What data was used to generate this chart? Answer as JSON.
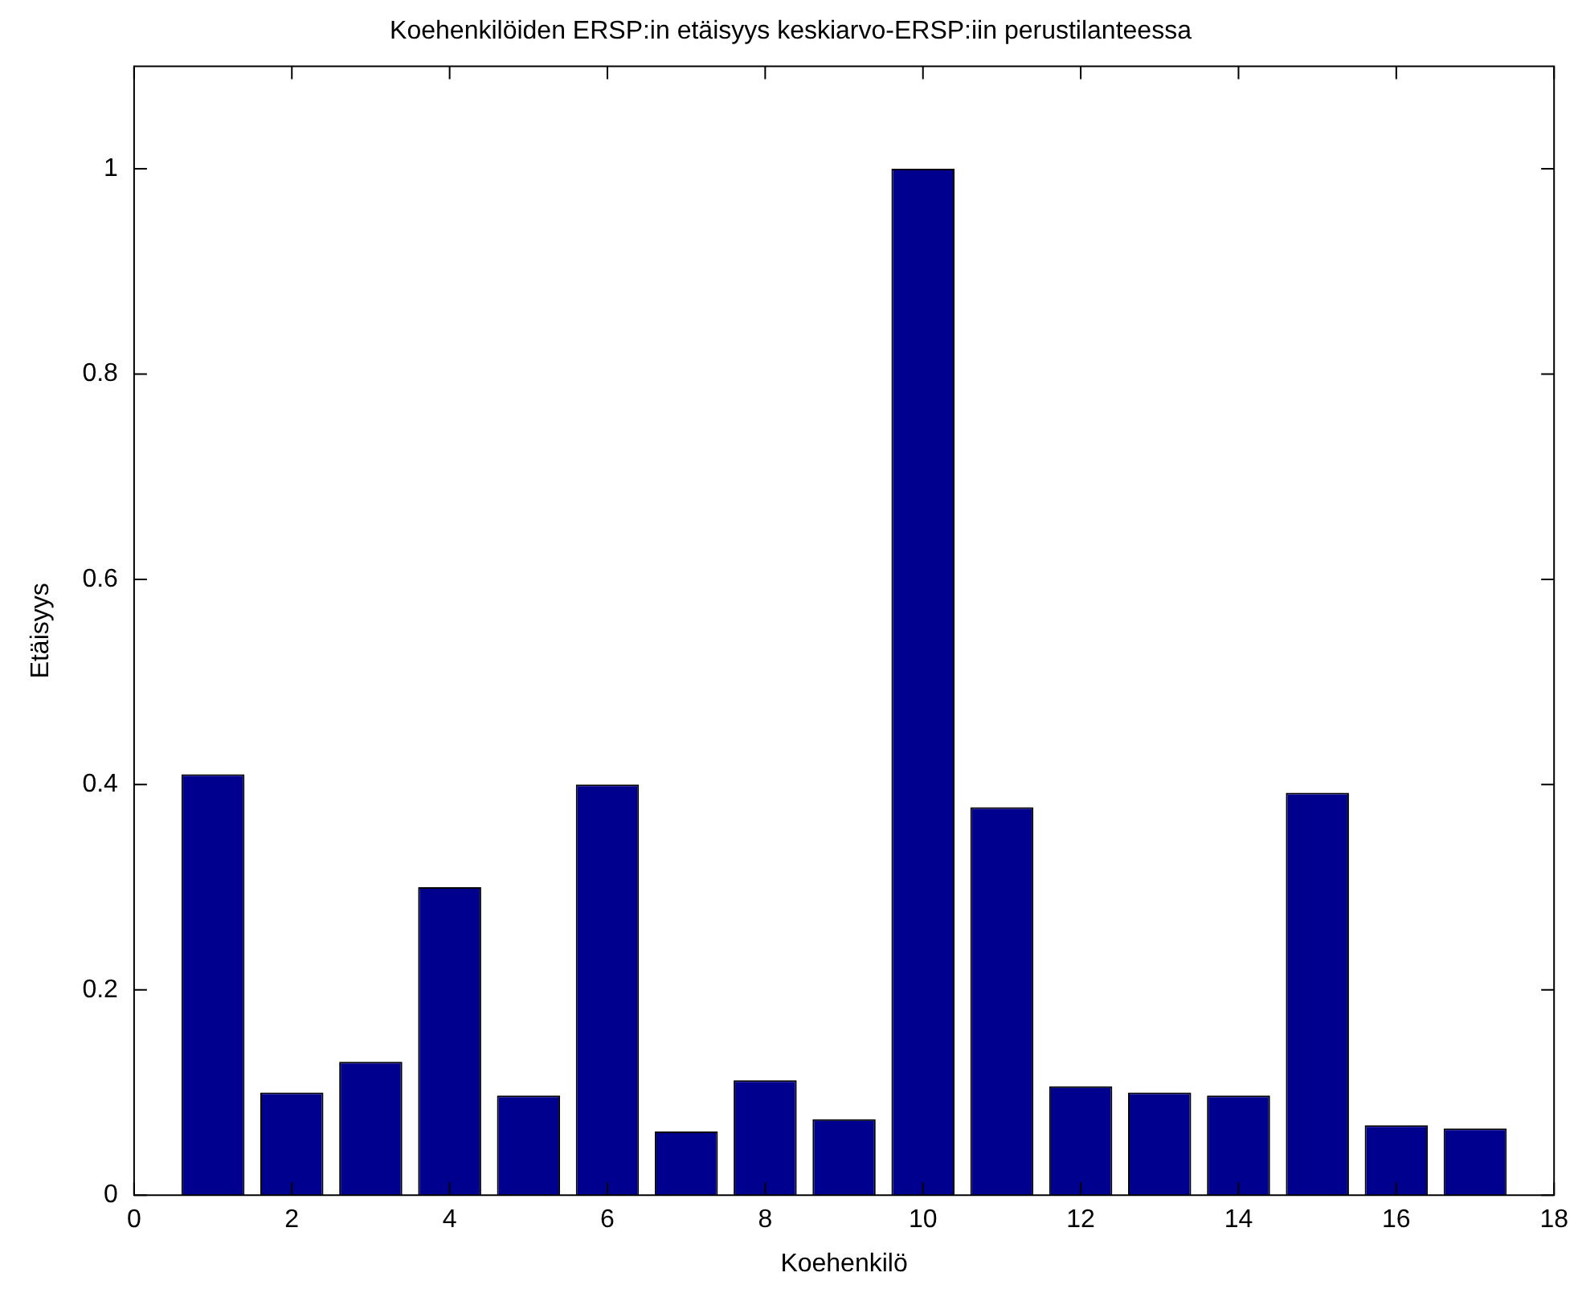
{
  "chart_data": {
    "type": "bar",
    "title": "Koehenkilöiden ERSP:in etäisyys keskiarvo-ERSP:iin perustilanteessa",
    "xlabel": "Koehenkilö",
    "ylabel": "Etäisyys",
    "x": [
      1,
      2,
      3,
      4,
      5,
      6,
      7,
      8,
      9,
      10,
      11,
      12,
      13,
      14,
      15,
      16,
      17
    ],
    "values": [
      0.41,
      0.1,
      0.13,
      0.3,
      0.097,
      0.4,
      0.062,
      0.112,
      0.074,
      1.0,
      0.378,
      0.106,
      0.1,
      0.097,
      0.392,
      0.068,
      0.065
    ],
    "color": "#00008f",
    "xlim": [
      0,
      18
    ],
    "xticks": [
      0,
      2,
      4,
      6,
      8,
      10,
      12,
      14,
      16,
      18
    ],
    "ylim": [
      0,
      1.1
    ],
    "yticks": [
      0,
      0.2,
      0.4,
      0.6,
      0.8,
      1
    ],
    "grid": false
  }
}
